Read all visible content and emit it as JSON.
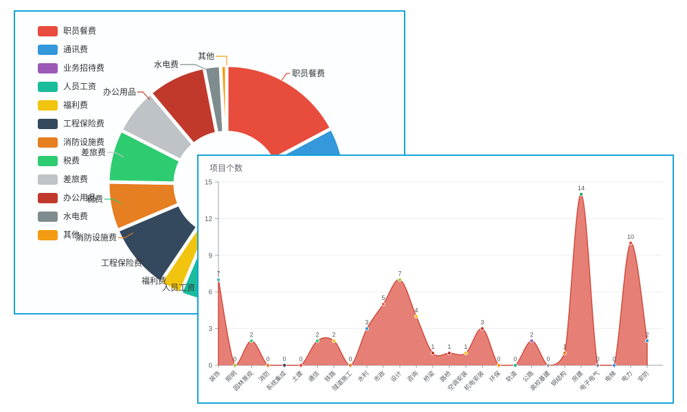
{
  "panels": {
    "pie_panel": {
      "name": "expense-donut"
    },
    "area_panel": {
      "name": "project-count-area"
    }
  },
  "colors": {
    "panel_border": "#12a3d8",
    "area_fill": "#e26a5f",
    "area_line": "#d14a3d",
    "axis_line": "#98a0a8",
    "grid_line": "#ebedf0",
    "text_muted": "#5c6066"
  },
  "chart_data": [
    {
      "type": "pie",
      "title": "",
      "legend_position": "left",
      "inner_radius_ratio": 0.43,
      "segments": [
        {
          "label": "职员餐费",
          "color": "#e74c3c",
          "sweep_deg": 62,
          "labeled": true
        },
        {
          "label": "通讯费",
          "color": "#3498db",
          "sweep_deg": 35,
          "labeled": false
        },
        {
          "label": "业务招待费",
          "color": "#9b59b6",
          "sweep_deg": 86,
          "labeled": false
        },
        {
          "label": "人员工资",
          "color": "#1abc9c",
          "sweep_deg": 20,
          "labeled": true
        },
        {
          "label": "福利费",
          "color": "#f1c40f",
          "sweep_deg": 11,
          "labeled": true
        },
        {
          "label": "工程保险费",
          "color": "#34495e",
          "sweep_deg": 33,
          "labeled": true
        },
        {
          "label": "消防设施费",
          "color": "#e67e22",
          "sweep_deg": 24,
          "labeled": true
        },
        {
          "label": "税费",
          "color": "#2ecc71",
          "sweep_deg": 26,
          "labeled": true
        },
        {
          "label": "差旅费",
          "color": "#bdc3c7",
          "sweep_deg": 23,
          "labeled": true
        },
        {
          "label": "办公用品",
          "color": "#c0392b",
          "sweep_deg": 29,
          "labeled": true
        },
        {
          "label": "水电费",
          "color": "#7f8c8d",
          "sweep_deg": 8,
          "labeled": true
        },
        {
          "label": "其他",
          "color": "#f39c12",
          "sweep_deg": 3,
          "labeled": true
        }
      ]
    },
    {
      "type": "area",
      "title": "项目个数",
      "smooth": true,
      "grid": true,
      "ylim": [
        0,
        15
      ],
      "yticks": [
        0,
        3,
        6,
        9,
        12,
        15
      ],
      "categories": [
        "装饰",
        "照明",
        "园林景观",
        "消防",
        "系统集成",
        "土建",
        "通信",
        "铁路",
        "隧道施工",
        "水利",
        "市政",
        "设计",
        "咨询",
        "桥梁",
        "路桥",
        "空调安装",
        "机电安装",
        "环保",
        "轨道",
        "公路",
        "高校基建",
        "钢结构",
        "房建",
        "电子电气",
        "电梯",
        "电力",
        "安防"
      ],
      "values": [
        7,
        0,
        2,
        0,
        0,
        0,
        2,
        2,
        0,
        3,
        5,
        7,
        4,
        1,
        1,
        1,
        3,
        0,
        0,
        2,
        0,
        1,
        14,
        0,
        0,
        10,
        2
      ],
      "point_colors": [
        "#3bbcd4",
        "#a5c63b",
        "#2ecc71",
        "#e67e22",
        "#34495e",
        "#e74c3c",
        "#2ecc71",
        "#f1c40f",
        "#e67e22",
        "#3498db",
        "#e26160",
        "#a5c63b",
        "#f1c40f",
        "#c0392b",
        "#c0392b",
        "#f1c40f",
        "#c0392b",
        "#f39c12",
        "#1abc9c",
        "#9b59b6",
        "#95a5a6",
        "#e67e22",
        "#27ae60",
        "#7f8c8d",
        "#3498db",
        "#e74c3c",
        "#3498db"
      ]
    }
  ]
}
